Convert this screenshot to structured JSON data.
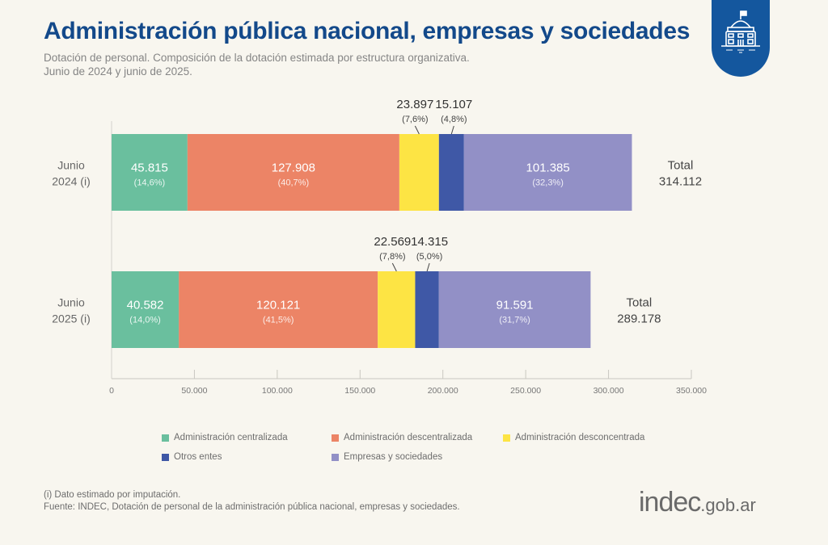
{
  "header": {
    "title": "Administración pública nacional, empresas y sociedades",
    "subtitle_line1": "Dotación de personal. Composición de la dotación estimada por estructura organizativa.",
    "subtitle_line2": "Junio de 2024 y junio de 2025.",
    "badge_icon": "government-building-icon"
  },
  "footer": {
    "note": "(i) Dato estimado por imputación.",
    "source": "Fuente: INDEC, Dotación de personal de la administración pública nacional, empresas y sociedades.",
    "brand_main": "indec",
    "brand_suffix": ".gob.ar"
  },
  "colors": {
    "title": "#13498a",
    "badge": "#14579e",
    "background": "#f8f6ef"
  },
  "chart_data": {
    "type": "bar",
    "orientation": "horizontal",
    "stacked": true,
    "title": "Administración pública nacional, empresas y sociedades",
    "xlabel": "",
    "ylabel": "",
    "xlim": [
      0,
      350000
    ],
    "x_ticks": [
      0,
      50000,
      100000,
      150000,
      200000,
      250000,
      300000,
      350000
    ],
    "x_tick_labels": [
      "0",
      "50.000",
      "100.000",
      "150.000",
      "200.000",
      "250.000",
      "300.000",
      "350.000"
    ],
    "grid": false,
    "legend_position": "bottom",
    "categories": [
      {
        "label_line1": "Junio",
        "label_line2": "2024 (i)",
        "total": 314112,
        "total_label": "Total",
        "total_value": "314.112"
      },
      {
        "label_line1": "Junio",
        "label_line2": "2025 (i)",
        "total": 289178,
        "total_label": "Total",
        "total_value": "289.178"
      }
    ],
    "series": [
      {
        "name": "Administración centralizada",
        "color": "#6abf9e",
        "values": [
          45815,
          40582
        ],
        "labels": [
          "45.815",
          "40.582"
        ],
        "pct": [
          "(14,6%)",
          "(14,0%)"
        ],
        "label_outside": false
      },
      {
        "name": "Administración descentralizada",
        "color": "#ec8466",
        "values": [
          127908,
          120121
        ],
        "labels": [
          "127.908",
          "120.121"
        ],
        "pct": [
          "(40,7%)",
          "(41,5%)"
        ],
        "label_outside": false
      },
      {
        "name": "Administración desconcentrada",
        "color": "#fde444",
        "values": [
          23897,
          22569
        ],
        "labels": [
          "23.897",
          "22.569"
        ],
        "pct": [
          "(7,6%)",
          "(7,8%)"
        ],
        "label_outside": true
      },
      {
        "name": "Otros entes",
        "color": "#3f58a6",
        "values": [
          15107,
          14315
        ],
        "labels": [
          "15.107",
          "14.315"
        ],
        "pct": [
          "(4,8%)",
          "(5,0%)"
        ],
        "label_outside": true
      },
      {
        "name": "Empresas y sociedades",
        "color": "#9290c6",
        "values": [
          101385,
          91591
        ],
        "labels": [
          "101.385",
          "91.591"
        ],
        "pct": [
          "(32,3%)",
          "(31,7%)"
        ],
        "label_outside": false
      }
    ]
  }
}
